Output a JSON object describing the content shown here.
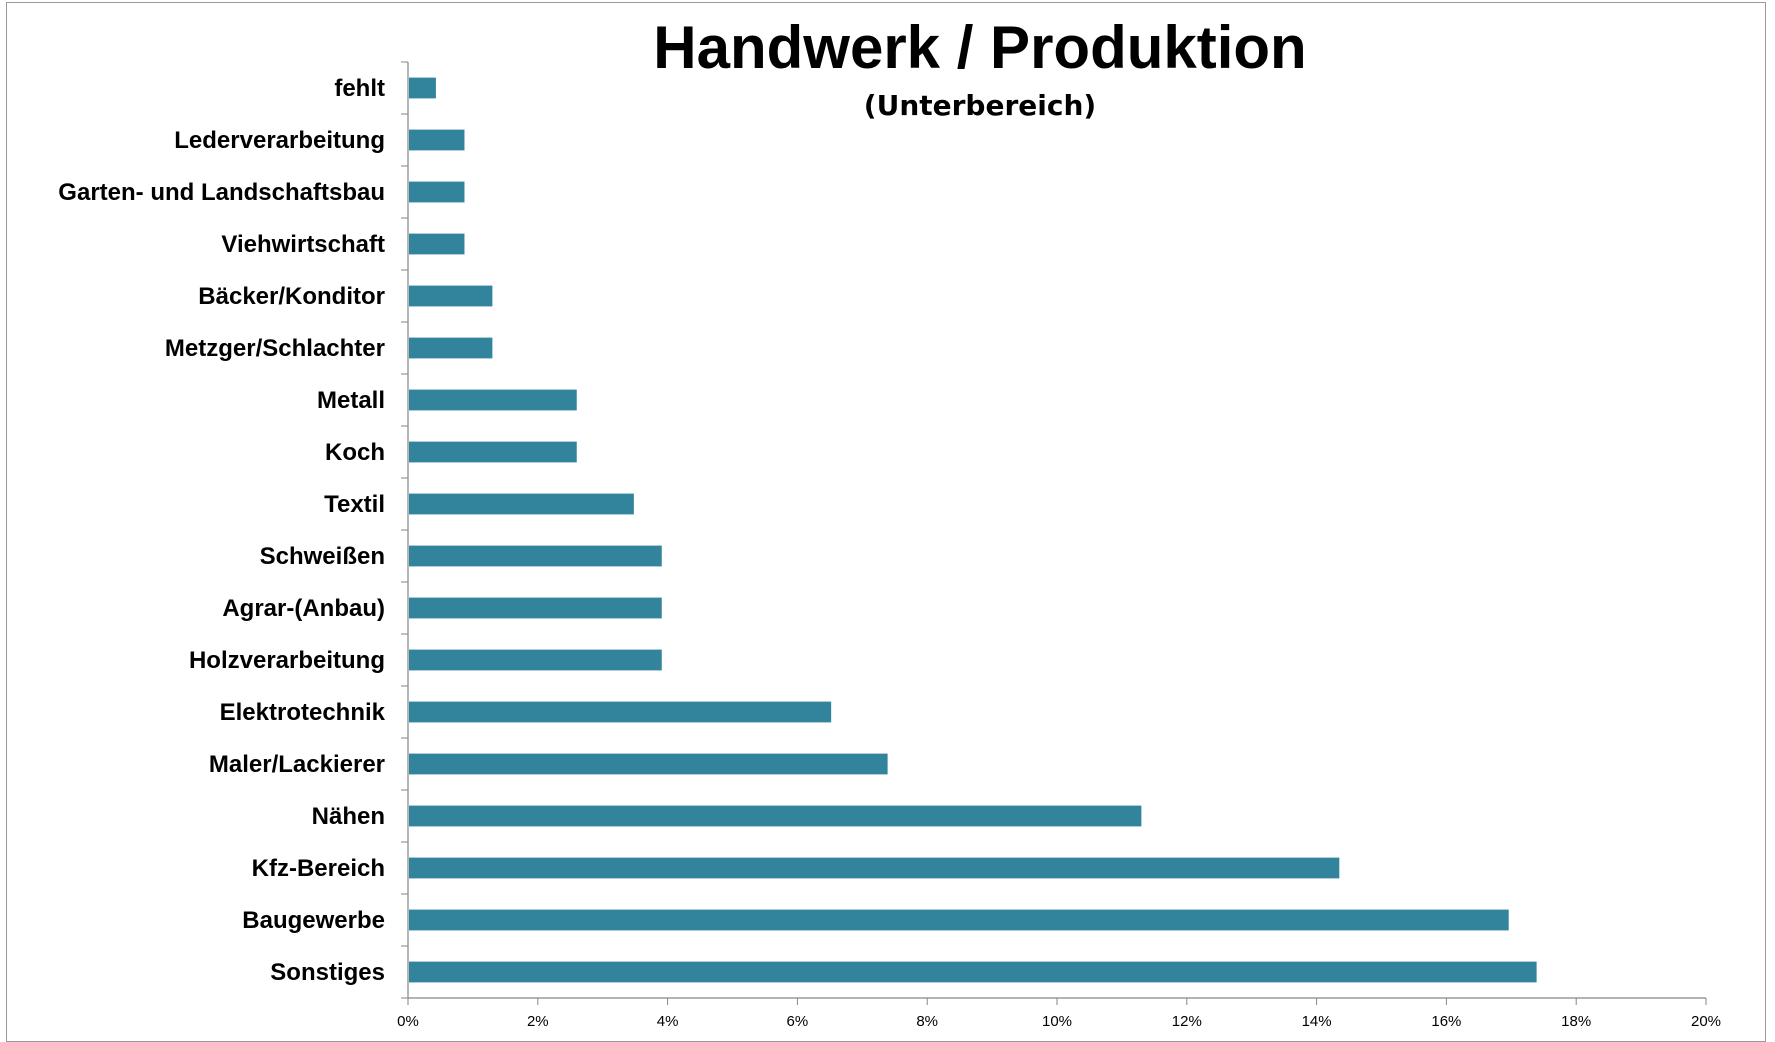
{
  "chart_data": {
    "type": "bar",
    "orientation": "horizontal",
    "title": "Handwerk / Produktion",
    "subtitle": "(Unterbereich)",
    "xlabel": "",
    "ylabel": "",
    "categories": [
      "fehlt",
      "Lederverarbeitung",
      "Garten- und Landschaftsbau",
      "Viehwirtschaft",
      "Bäcker/Konditor",
      "Metzger/Schlachter",
      "Metall",
      "Koch",
      "Textil",
      "Schweißen",
      "Agrar-(Anbau)",
      "Holzverarbeitung",
      "Elektrotechnik",
      "Maler/Lackierer",
      "Nähen",
      "Kfz-Bereich",
      "Baugewerbe",
      "Sonstiges"
    ],
    "values": [
      0.43,
      0.87,
      0.87,
      0.87,
      1.3,
      1.3,
      2.6,
      2.6,
      3.48,
      3.91,
      3.91,
      3.91,
      6.52,
      7.39,
      11.3,
      14.35,
      16.96,
      17.39
    ],
    "unit": "%",
    "xlim": [
      0,
      20
    ],
    "x_ticks": [
      "0%",
      "2%",
      "4%",
      "6%",
      "8%",
      "10%",
      "12%",
      "14%",
      "16%",
      "18%",
      "20%"
    ],
    "grid": false,
    "legend": "none",
    "bar_color": "#31849b",
    "axis_color": "#868686"
  }
}
